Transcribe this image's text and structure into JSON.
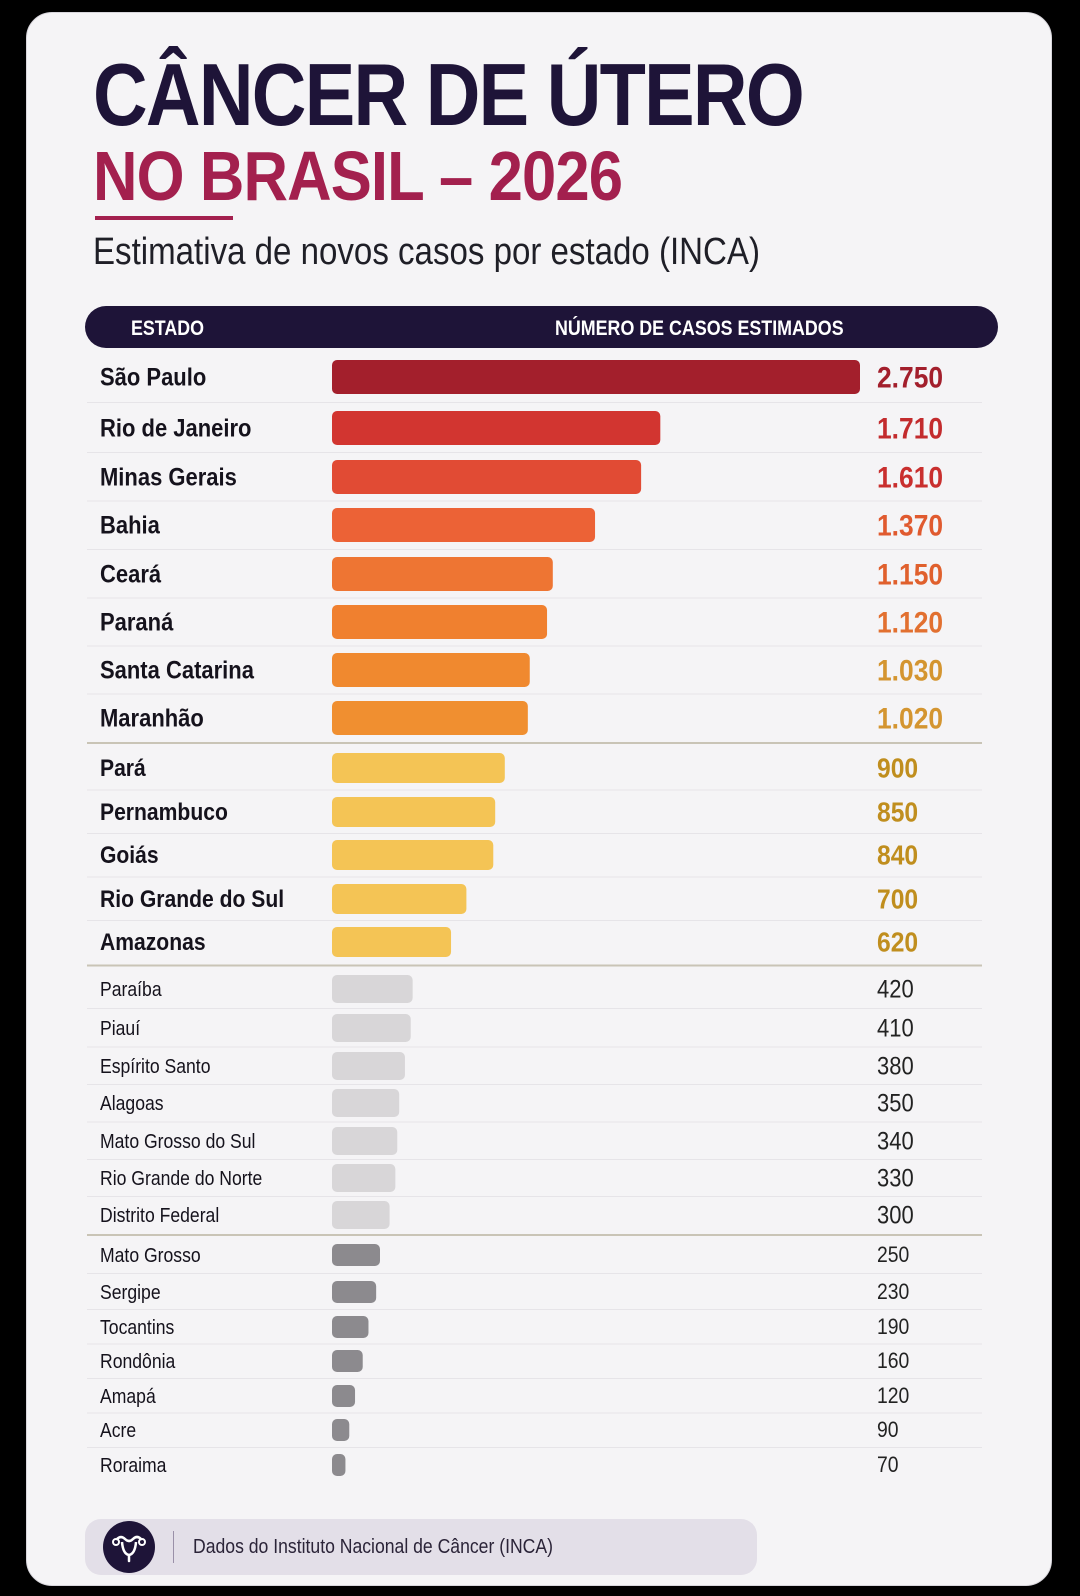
{
  "header": {
    "title_line1": "CÂNCER DE ÚTERO",
    "title_line2": "NO BRASIL – 2026",
    "subtitle": "Estimativa de novos casos por estado (INCA)"
  },
  "table_header": {
    "col_state": "ESTADO",
    "col_cases": "NÚMERO DE CASOS ESTIMADOS"
  },
  "footer": {
    "icon": "uterus-icon",
    "text": "Dados do Instituto Nacional de Câncer (INCA)"
  },
  "colors": {
    "title_dark": "#1e1438",
    "title_accent": "#a3204e"
  },
  "chart_data": {
    "type": "bar",
    "orientation": "horizontal",
    "title": "Estimativa de novos casos por estado (INCA)",
    "xlabel": "NÚMERO DE CASOS ESTIMADOS",
    "ylabel": "ESTADO",
    "xlim": [
      0,
      2750
    ],
    "grid": false,
    "categories": [
      "São Paulo",
      "Rio de Janeiro",
      "Minas Gerais",
      "Bahia",
      "Ceará",
      "Paraná",
      "Santa Catarina",
      "Maranhão",
      "Pará",
      "Pernambuco",
      "Goiás",
      "Rio Grande do Sul",
      "Amazonas",
      "Paraíba",
      "Piauí",
      "Espírito Santo",
      "Alagoas",
      "Mato Grosso do Sul",
      "Rio Grande do Norte",
      "Distrito Federal",
      "Mato Grosso",
      "Sergipe",
      "Tocantins",
      "Rondônia",
      "Amapá",
      "Acre",
      "Roraima"
    ],
    "values": [
      2750,
      1710,
      1610,
      1370,
      1150,
      1120,
      1030,
      1020,
      900,
      850,
      840,
      700,
      620,
      420,
      410,
      380,
      350,
      340,
      330,
      300,
      250,
      230,
      190,
      160,
      120,
      90,
      70
    ],
    "value_labels": [
      "2.750",
      "1.710",
      "1.610",
      "1.370",
      "1.150",
      "1.120",
      "1.030",
      "1.020",
      "900",
      "850",
      "840",
      "700",
      "620",
      "420",
      "410",
      "380",
      "350",
      "340",
      "330",
      "300",
      "250",
      "230",
      "190",
      "160",
      "120",
      "90",
      "70"
    ],
    "bar_colors": [
      "#a31f2c",
      "#d23530",
      "#e14b34",
      "#ec6236",
      "#ee7533",
      "#f0802f",
      "#f0892f",
      "#f08f30",
      "#f4c455",
      "#f4c455",
      "#f4c455",
      "#f4c455",
      "#f4c455",
      "#d8d6d8",
      "#d8d6d8",
      "#d8d6d8",
      "#d8d6d8",
      "#d8d6d8",
      "#d8d6d8",
      "#d8d6d8",
      "#8c8a8e",
      "#8c8a8e",
      "#8c8a8e",
      "#8c8a8e",
      "#8c8a8e",
      "#8c8a8e",
      "#8c8a8e"
    ],
    "label_colors": [
      "#a31f2c",
      "#c32b2d",
      "#c92f2e",
      "#e05a2f",
      "#e0602d",
      "#e27030",
      "#d49530",
      "#d49530",
      "#c08e1e",
      "#c08e1e",
      "#c08e1e",
      "#c08e1e",
      "#c08e1e",
      "#222222",
      "#222222",
      "#222222",
      "#222222",
      "#222222",
      "#222222",
      "#222222",
      "#222222",
      "#222222",
      "#222222",
      "#222222",
      "#222222",
      "#222222",
      "#222222"
    ]
  }
}
